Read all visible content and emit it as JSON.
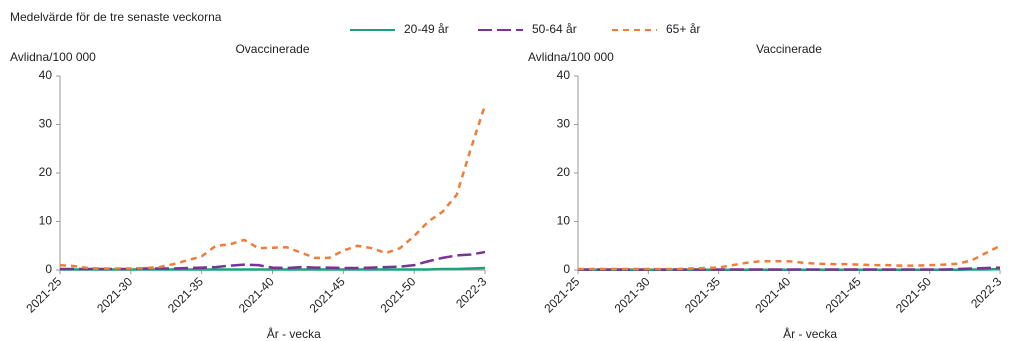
{
  "note": "Medelvärde för de tre senaste veckorna",
  "legend": [
    {
      "name": "20-49 år",
      "color": "#1aa37a",
      "dash": ""
    },
    {
      "name": "50-64 år",
      "color": "#7b3294",
      "dash": "14 5"
    },
    {
      "name": "65+ år",
      "color": "#f07c3a",
      "dash": "6 5"
    }
  ],
  "chart_data": [
    {
      "type": "line",
      "title": "Ovaccinerade",
      "ylabel": "Avlidna/100 000",
      "xlabel": "År - vecka",
      "categories": [
        "2021-25",
        null,
        null,
        null,
        null,
        "2021-30",
        null,
        null,
        null,
        null,
        "2021-35",
        null,
        null,
        null,
        null,
        "2021-40",
        null,
        null,
        null,
        null,
        "2021-45",
        null,
        null,
        null,
        null,
        "2021-50",
        null,
        null,
        null,
        null,
        "2022-3"
      ],
      "ylim": [
        0,
        40
      ],
      "yticks": [
        0,
        10,
        20,
        30,
        40
      ],
      "series": [
        {
          "values": [
            0.1,
            0.1,
            0.1,
            0.1,
            0.1,
            0.1,
            0.1,
            0.1,
            0.1,
            0.1,
            0.1,
            0.1,
            0.1,
            0.1,
            0.1,
            0.1,
            0.1,
            0.1,
            0.1,
            0.1,
            0.1,
            0.1,
            0.1,
            0.1,
            0.1,
            0.1,
            0.1,
            0.2,
            0.2,
            0.3,
            0.4
          ]
        },
        {
          "values": [
            0.2,
            0.2,
            0.2,
            0.2,
            0.2,
            0.2,
            0.3,
            0.3,
            0.3,
            0.4,
            0.5,
            0.6,
            0.9,
            1.1,
            1.0,
            0.5,
            0.4,
            0.6,
            0.5,
            0.5,
            0.4,
            0.4,
            0.5,
            0.6,
            0.7,
            1.0,
            1.8,
            2.5,
            3.0,
            3.2,
            3.7
          ]
        },
        {
          "values": [
            1.0,
            0.8,
            0.4,
            0.3,
            0.3,
            0.3,
            0.4,
            0.6,
            1.2,
            2.0,
            2.8,
            5.0,
            5.3,
            6.2,
            4.5,
            4.6,
            4.7,
            3.6,
            2.5,
            2.5,
            4.0,
            5.0,
            4.5,
            3.5,
            4.5,
            7.0,
            10.0,
            12.0,
            15.5,
            25,
            34
          ]
        }
      ]
    },
    {
      "type": "line",
      "title": "Vaccinerade",
      "ylabel": "Avlidna/100 000",
      "xlabel": "År - vecka",
      "categories": [
        "2021-25",
        null,
        null,
        null,
        null,
        "2021-30",
        null,
        null,
        null,
        null,
        "2021-35",
        null,
        null,
        null,
        null,
        "2021-40",
        null,
        null,
        null,
        null,
        "2021-45",
        null,
        null,
        null,
        null,
        "2021-50",
        null,
        null,
        null,
        null,
        "2022-3"
      ],
      "ylim": [
        0,
        40
      ],
      "yticks": [
        0,
        10,
        20,
        30,
        40
      ],
      "series": [
        {
          "values": [
            0.05,
            0.05,
            0.05,
            0.05,
            0.05,
            0.05,
            0.05,
            0.05,
            0.05,
            0.05,
            0.05,
            0.05,
            0.05,
            0.05,
            0.05,
            0.05,
            0.05,
            0.05,
            0.05,
            0.05,
            0.05,
            0.05,
            0.05,
            0.05,
            0.05,
            0.05,
            0.05,
            0.05,
            0.1,
            0.1,
            0.2
          ]
        },
        {
          "values": [
            0.1,
            0.1,
            0.1,
            0.1,
            0.1,
            0.1,
            0.1,
            0.1,
            0.1,
            0.1,
            0.1,
            0.1,
            0.1,
            0.1,
            0.1,
            0.1,
            0.1,
            0.1,
            0.1,
            0.1,
            0.1,
            0.1,
            0.1,
            0.1,
            0.1,
            0.1,
            0.1,
            0.2,
            0.3,
            0.4,
            0.5
          ]
        },
        {
          "values": [
            0.2,
            0.2,
            0.2,
            0.2,
            0.2,
            0.2,
            0.2,
            0.2,
            0.3,
            0.4,
            0.5,
            1.0,
            1.5,
            1.8,
            1.8,
            1.8,
            1.5,
            1.3,
            1.2,
            1.2,
            1.1,
            1.0,
            1.0,
            0.9,
            0.9,
            1.0,
            1.1,
            1.3,
            2.0,
            3.5,
            5.0
          ]
        }
      ]
    }
  ]
}
